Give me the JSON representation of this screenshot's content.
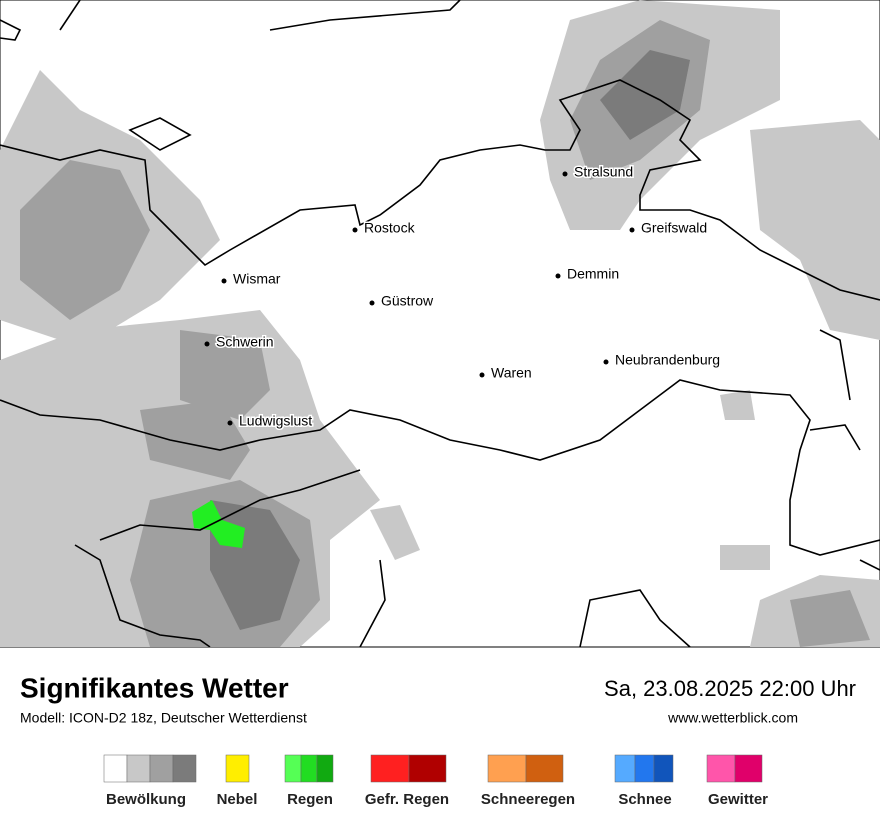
{
  "header": {
    "title": "Signifikantes Wetter",
    "subtitle": "Modell: ICON-D2 18z, Deutscher Wetterdienst",
    "datetime": "Sa, 23.08.2025 22:00 Uhr",
    "website": "www.wetterblick.com"
  },
  "map": {
    "cities": [
      "Stralsund",
      "Rostock",
      "Greifswald",
      "Wismar",
      "Demmin",
      "Güstrow",
      "Schwerin",
      "Neubrandenburg",
      "Waren",
      "Ludwigslust"
    ]
  },
  "legend": {
    "items": [
      "Bewölkung",
      "Nebel",
      "Regen",
      "Gefr. Regen",
      "Schneeregen",
      "Schnee",
      "Gewitter"
    ]
  }
}
